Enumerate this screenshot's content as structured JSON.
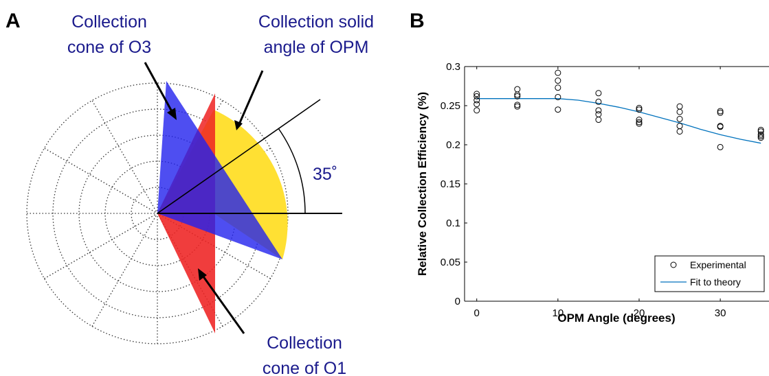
{
  "panel_a": {
    "letter": "A",
    "label_o3_line1": "Collection",
    "label_o3_line2": "cone of O3",
    "label_opm_line1": "Collection solid",
    "label_opm_line2": "angle of OPM",
    "label_o1_line1": "Collection",
    "label_o1_line2": "cone of O1",
    "angle_label": "35˚",
    "colors": {
      "blue_cone": "#2222ee",
      "red_cone": "#ee2222",
      "yellow_cone": "#ffe033",
      "label_text": "#1a1a8c"
    }
  },
  "panel_b": {
    "letter": "B"
  },
  "chart_data": {
    "type": "scatter",
    "xlabel": "OPM Angle (degrees)",
    "ylabel": "Relative Collection Efficiency (%)",
    "xlim": [
      -1.5,
      36
    ],
    "ylim": [
      0,
      0.3
    ],
    "xticks": [
      0,
      10,
      20,
      30
    ],
    "yticks": [
      0,
      0.05,
      0.1,
      0.15,
      0.2,
      0.25,
      0.3
    ],
    "ytick_labels": [
      "0",
      "0.05",
      "0.1",
      "0.15",
      "0.2",
      "0.25",
      "0.3"
    ],
    "grid": false,
    "legend_position": "bottom-right",
    "series": [
      {
        "name": "Experimental",
        "marker": "open-circle",
        "color": "#000000",
        "points": [
          [
            0,
            0.265
          ],
          [
            0,
            0.262
          ],
          [
            0,
            0.257
          ],
          [
            0,
            0.252
          ],
          [
            0,
            0.244
          ],
          [
            5,
            0.271
          ],
          [
            5,
            0.264
          ],
          [
            5,
            0.262
          ],
          [
            5,
            0.251
          ],
          [
            5,
            0.249
          ],
          [
            10,
            0.292
          ],
          [
            10,
            0.282
          ],
          [
            10,
            0.273
          ],
          [
            10,
            0.261
          ],
          [
            10,
            0.245
          ],
          [
            15,
            0.266
          ],
          [
            15,
            0.255
          ],
          [
            15,
            0.244
          ],
          [
            15,
            0.239
          ],
          [
            15,
            0.232
          ],
          [
            20,
            0.247
          ],
          [
            20,
            0.245
          ],
          [
            20,
            0.232
          ],
          [
            20,
            0.229
          ],
          [
            20,
            0.227
          ],
          [
            25,
            0.249
          ],
          [
            25,
            0.242
          ],
          [
            25,
            0.233
          ],
          [
            25,
            0.224
          ],
          [
            25,
            0.217
          ],
          [
            30,
            0.243
          ],
          [
            30,
            0.241
          ],
          [
            30,
            0.224
          ],
          [
            30,
            0.223
          ],
          [
            30,
            0.197
          ],
          [
            35,
            0.219
          ],
          [
            35,
            0.217
          ],
          [
            35,
            0.213
          ],
          [
            35,
            0.211
          ],
          [
            35,
            0.209
          ]
        ]
      },
      {
        "name": "Fit to theory",
        "style": "line",
        "color": "#0072bd",
        "x": [
          0,
          2.5,
          5,
          7.5,
          10,
          12.5,
          15,
          17.5,
          20,
          22.5,
          25,
          27.5,
          30,
          32.5,
          35
        ],
        "y": [
          0.259,
          0.259,
          0.259,
          0.259,
          0.259,
          0.257,
          0.253,
          0.248,
          0.242,
          0.235,
          0.228,
          0.22,
          0.213,
          0.207,
          0.202
        ]
      }
    ]
  }
}
